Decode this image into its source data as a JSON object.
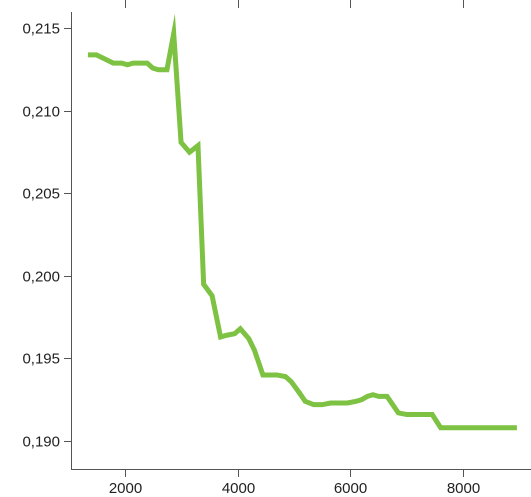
{
  "chart_data": {
    "type": "line",
    "title": "",
    "xlabel": "",
    "ylabel": "",
    "xlim": [
      1050,
      9200
    ],
    "ylim": [
      0.1883,
      0.216
    ],
    "x_ticks": [
      2000,
      4000,
      6000,
      8000
    ],
    "x_tick_labels": [
      "2000",
      "4000",
      "6000",
      "8000"
    ],
    "y_ticks": [
      0.19,
      0.195,
      0.2,
      0.205,
      0.21,
      0.215
    ],
    "y_tick_labels": [
      "0,190",
      "0,195",
      "0,200",
      "0,205",
      "0,210",
      "0,215"
    ],
    "grid": false,
    "legend": "none",
    "series": [
      {
        "color": "#7dc242",
        "x": [
          1350,
          1500,
          1800,
          1950,
          2050,
          2150,
          2200,
          2300,
          2400,
          2500,
          2600,
          2700,
          2750,
          2870,
          3000,
          3150,
          3300,
          3400,
          3550,
          3700,
          3800,
          3950,
          4050,
          4200,
          4300,
          4450,
          4700,
          4850,
          4950,
          5100,
          5200,
          5350,
          5500,
          5650,
          5800,
          5950,
          6100,
          6200,
          6300,
          6400,
          6500,
          6650,
          6850,
          7000,
          7200,
          7450,
          7600,
          7800,
          8000,
          8200,
          8500,
          8800,
          8950
        ],
        "y": [
          0.2134,
          0.2134,
          0.2129,
          0.2129,
          0.2128,
          0.2129,
          0.2129,
          0.2129,
          0.2129,
          0.2126,
          0.2125,
          0.2125,
          0.2125,
          0.2147,
          0.2081,
          0.2075,
          0.2079,
          0.1995,
          0.1988,
          0.1963,
          0.1964,
          0.1965,
          0.1968,
          0.1962,
          0.1955,
          0.194,
          0.194,
          0.1939,
          0.1936,
          0.1929,
          0.1924,
          0.1922,
          0.1922,
          0.1923,
          0.1923,
          0.1923,
          0.1924,
          0.1925,
          0.1927,
          0.1928,
          0.1927,
          0.1927,
          0.1917,
          0.1916,
          0.1916,
          0.1916,
          0.1908,
          0.1908,
          0.1908,
          0.1908,
          0.1908,
          0.1908,
          0.1908
        ]
      }
    ]
  }
}
